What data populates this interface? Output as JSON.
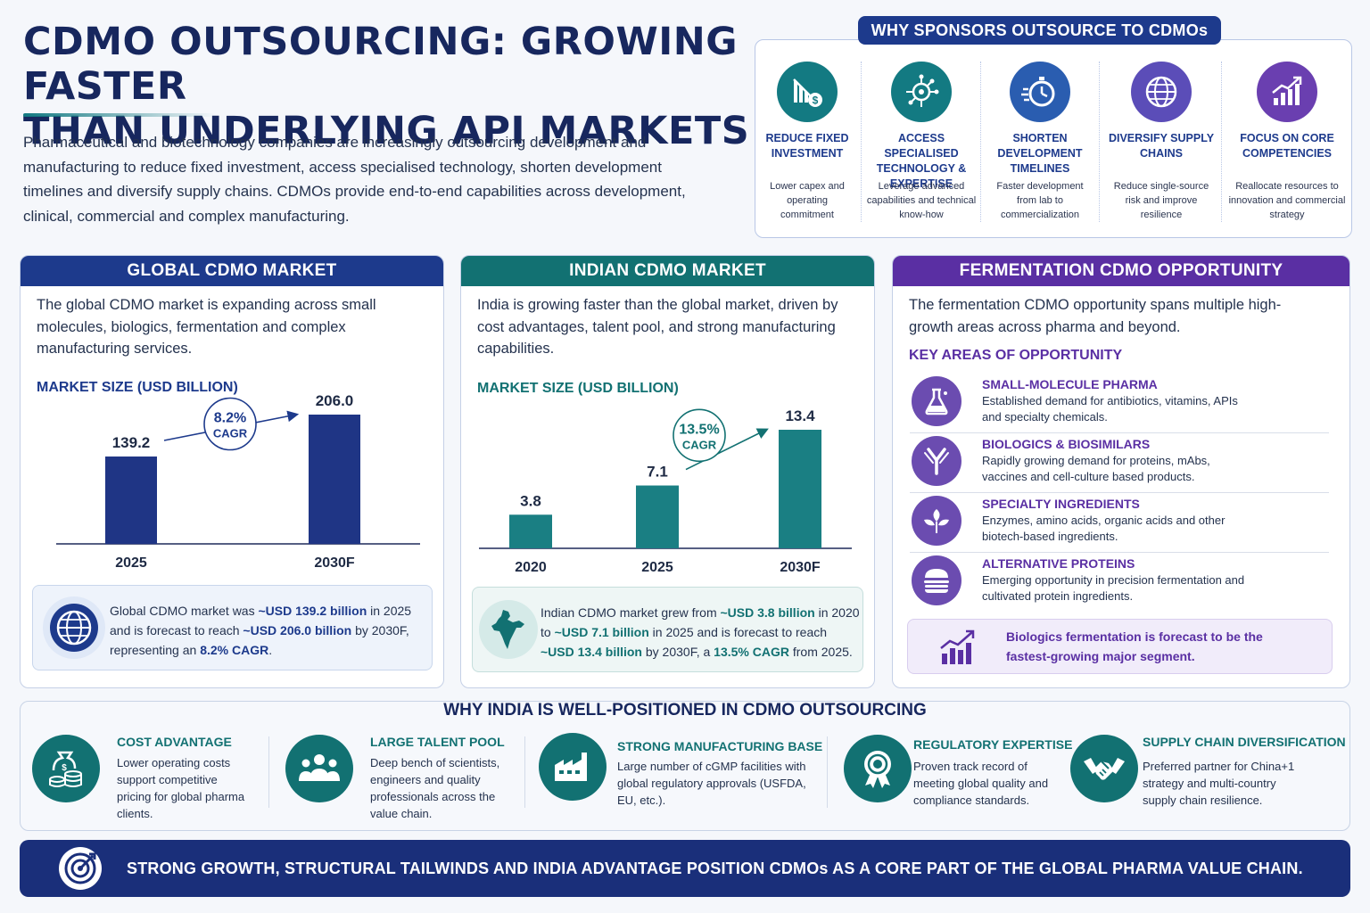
{
  "header": {
    "title_line1": "CDMO OUTSOURCING: GROWING FASTER",
    "title_line2": "THAN UNDERLYING API MARKETS",
    "intro": "Pharmaceutical and biotechnology companies are increasingly outsourcing development and manufacturing to reduce fixed investment, access specialised technology, shorten development timelines and diversify supply chains. CDMOs provide end-to-end capabilities across development, clinical, commercial and complex manufacturing."
  },
  "why_outsource": {
    "title": "WHY SPONSORS OUTSOURCE TO CDMOs",
    "items": [
      {
        "icon": "cost-reduction-icon",
        "color": "#137a82",
        "heading": "REDUCE FIXED INVESTMENT",
        "desc": "Lower capex and operating commitment"
      },
      {
        "icon": "technology-circuit-icon",
        "color": "#137a82",
        "heading": "ACCESS SPECIALISED TECHNOLOGY & EXPERTISE",
        "desc": "Leverage advanced capabilities and technical know-how"
      },
      {
        "icon": "stopwatch-icon",
        "color": "#2a5db0",
        "heading": "SHORTEN DEVELOPMENT TIMELINES",
        "desc": "Faster development from lab to commercialization"
      },
      {
        "icon": "globe-icon",
        "color": "#5b4db8",
        "heading": "DIVERSIFY SUPPLY CHAINS",
        "desc": "Reduce single-source risk and improve resilience"
      },
      {
        "icon": "growth-chart-icon",
        "color": "#6a3fb0",
        "heading": "FOCUS ON CORE COMPETENCIES",
        "desc": "Reallocate resources to innovation and commercial strategy"
      }
    ]
  },
  "global": {
    "header": "GLOBAL CDMO MARKET",
    "color": "#1d3a8c",
    "text": "The global CDMO market is expanding across small molecules, biologics, fermentation and complex manufacturing services.",
    "chart_title": "MARKET SIZE (USD BILLION)",
    "cagr": "8.2%",
    "cagr_label": "CAGR",
    "info_p1": "Global CDMO market was ",
    "info_b1": "~USD 139.2 billion",
    "info_p2": " in 2025 and is forecast to reach ",
    "info_b2": "~USD 206.0 billion",
    "info_p3": " by 2030F, representing an ",
    "info_b3": "8.2% CAGR",
    "info_p4": "."
  },
  "indian": {
    "header": "INDIAN CDMO MARKET",
    "color": "#127172",
    "text": "India is growing faster than the global market, driven by cost advantages, talent pool, and strong manufacturing capabilities.",
    "chart_title": "MARKET SIZE (USD BILLION)",
    "cagr": "13.5%",
    "cagr_label": "CAGR",
    "info_p1": "Indian CDMO market grew from ",
    "info_b1": "~USD 3.8 billion",
    "info_p2": " in 2020 to ",
    "info_b2": "~USD 7.1 billion",
    "info_p3": " in 2025 and is forecast to reach ",
    "info_b3": "~USD 13.4 billion",
    "info_p4": " by 2030F, a ",
    "info_b4": "13.5% CAGR",
    "info_p5": " from 2025."
  },
  "chart_data": [
    {
      "type": "bar",
      "title": "MARKET SIZE (USD BILLION)",
      "categories": [
        "2025",
        "2030F"
      ],
      "values": [
        139.2,
        206.0
      ],
      "value_labels": [
        "139.2",
        "206.0"
      ],
      "annotation": "8.2% CAGR",
      "color": "#1f3585"
    },
    {
      "type": "bar",
      "title": "MARKET SIZE (USD BILLION)",
      "categories": [
        "2020",
        "2025",
        "2030F"
      ],
      "values": [
        3.8,
        7.1,
        13.4
      ],
      "value_labels": [
        "3.8",
        "7.1",
        "13.4"
      ],
      "annotation": "13.5% CAGR",
      "color": "#1a7f83"
    }
  ],
  "fermentation": {
    "header": "FERMENTATION CDMO OPPORTUNITY",
    "color": "#5a2fa3",
    "text": "The fermentation CDMO opportunity spans multiple high-growth areas across pharma and beyond.",
    "key_title": "KEY AREAS OF OPPORTUNITY",
    "items": [
      {
        "icon": "flask-icon",
        "heading": "SMALL-MOLECULE PHARMA",
        "desc": "Established demand for antibiotics, vitamins, APIs and specialty chemicals."
      },
      {
        "icon": "antibody-icon",
        "heading": "BIOLOGICS & BIOSIMILARS",
        "desc": "Rapidly growing demand for proteins, mAbs, vaccines and cell-culture based products."
      },
      {
        "icon": "leaf-icon",
        "heading": "SPECIALTY INGREDIENTS",
        "desc": "Enzymes, amino acids, organic acids and other biotech-based ingredients."
      },
      {
        "icon": "burger-icon",
        "heading": "ALTERNATIVE PROTEINS",
        "desc": "Emerging opportunity in precision fermentation and cultivated protein ingredients."
      }
    ],
    "highlight": "Biologics fermentation is forecast to be the fastest-growing major segment."
  },
  "india_position": {
    "title": "WHY INDIA IS WELL-POSITIONED IN CDMO OUTSOURCING",
    "items": [
      {
        "icon": "money-bag-icon",
        "heading": "COST ADVANTAGE",
        "desc": "Lower operating costs support competitive pricing for global pharma clients."
      },
      {
        "icon": "people-icon",
        "heading": "LARGE TALENT POOL",
        "desc": "Deep bench of scientists, engineers and quality professionals across the value chain."
      },
      {
        "icon": "factory-icon",
        "heading": "STRONG MANUFACTURING BASE",
        "desc": "Large number of cGMP facilities with global regulatory approvals (USFDA, EU, etc.)."
      },
      {
        "icon": "award-badge-icon",
        "heading": "REGULATORY EXPERTISE",
        "desc": "Proven track record of meeting global quality and compliance standards."
      },
      {
        "icon": "handshake-icon",
        "heading": "SUPPLY CHAIN DIVERSIFICATION",
        "desc": "Preferred partner for China+1 strategy and multi-country supply chain resilience."
      }
    ]
  },
  "footer": {
    "icon": "target-icon",
    "text": "STRONG GROWTH, STRUCTURAL TAILWINDS AND INDIA ADVANTAGE POSITION CDMOs AS A CORE PART OF THE GLOBAL PHARMA VALUE CHAIN."
  }
}
